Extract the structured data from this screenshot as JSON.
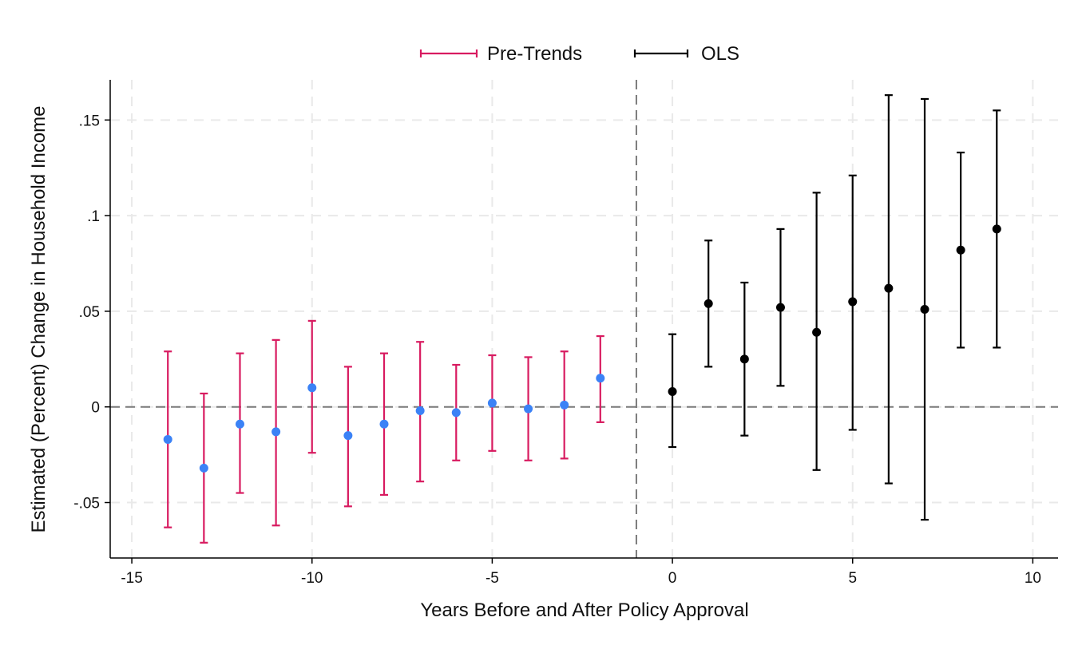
{
  "chart_data": {
    "type": "scatter",
    "title": "",
    "xlabel": "Years Before and After Policy Approval",
    "ylabel": "Estimated (Percent) Change in Household Income",
    "xlim": [
      -15.6,
      10.7
    ],
    "ylim": [
      -0.079,
      0.171
    ],
    "xticks": [
      -15,
      -10,
      -5,
      0,
      5,
      10
    ],
    "xtick_labels": [
      "-15",
      "-10",
      "-5",
      "0",
      "5",
      "10"
    ],
    "yticks": [
      -0.05,
      0,
      0.05,
      0.1,
      0.15
    ],
    "ytick_labels": [
      "-.05",
      "0",
      ".05",
      ".1",
      ".15"
    ],
    "grid": true,
    "reference_lines": {
      "horizontal_y": 0,
      "vertical_x": -1
    },
    "legend": {
      "position": "top",
      "entries": [
        "Pre-Trends",
        "OLS"
      ]
    },
    "series": [
      {
        "name": "Pre-Trends",
        "ci_color": "#d81b60",
        "point_color": "#3b82f6",
        "points": [
          {
            "x": -14,
            "y": -0.017,
            "lo": -0.063,
            "hi": 0.029
          },
          {
            "x": -13,
            "y": -0.032,
            "lo": -0.071,
            "hi": 0.007
          },
          {
            "x": -12,
            "y": -0.009,
            "lo": -0.045,
            "hi": 0.028
          },
          {
            "x": -11,
            "y": -0.013,
            "lo": -0.062,
            "hi": 0.035
          },
          {
            "x": -10,
            "y": 0.01,
            "lo": -0.024,
            "hi": 0.045
          },
          {
            "x": -9,
            "y": -0.015,
            "lo": -0.052,
            "hi": 0.021
          },
          {
            "x": -8,
            "y": -0.009,
            "lo": -0.046,
            "hi": 0.028
          },
          {
            "x": -7,
            "y": -0.002,
            "lo": -0.039,
            "hi": 0.034
          },
          {
            "x": -6,
            "y": -0.003,
            "lo": -0.028,
            "hi": 0.022
          },
          {
            "x": -5,
            "y": 0.002,
            "lo": -0.023,
            "hi": 0.027
          },
          {
            "x": -4,
            "y": -0.001,
            "lo": -0.028,
            "hi": 0.026
          },
          {
            "x": -3,
            "y": 0.001,
            "lo": -0.027,
            "hi": 0.029
          },
          {
            "x": -2,
            "y": 0.015,
            "lo": -0.008,
            "hi": 0.037
          }
        ]
      },
      {
        "name": "OLS",
        "ci_color": "#000000",
        "point_color": "#000000",
        "points": [
          {
            "x": 0,
            "y": 0.008,
            "lo": -0.021,
            "hi": 0.038
          },
          {
            "x": 1,
            "y": 0.054,
            "lo": 0.021,
            "hi": 0.087
          },
          {
            "x": 2,
            "y": 0.025,
            "lo": -0.015,
            "hi": 0.065
          },
          {
            "x": 3,
            "y": 0.052,
            "lo": 0.011,
            "hi": 0.093
          },
          {
            "x": 4,
            "y": 0.039,
            "lo": -0.033,
            "hi": 0.112
          },
          {
            "x": 5,
            "y": 0.055,
            "lo": -0.012,
            "hi": 0.121
          },
          {
            "x": 6,
            "y": 0.062,
            "lo": -0.04,
            "hi": 0.163
          },
          {
            "x": 7,
            "y": 0.051,
            "lo": -0.059,
            "hi": 0.161
          },
          {
            "x": 8,
            "y": 0.082,
            "lo": 0.031,
            "hi": 0.133
          },
          {
            "x": 9,
            "y": 0.093,
            "lo": 0.031,
            "hi": 0.155
          }
        ]
      }
    ]
  }
}
